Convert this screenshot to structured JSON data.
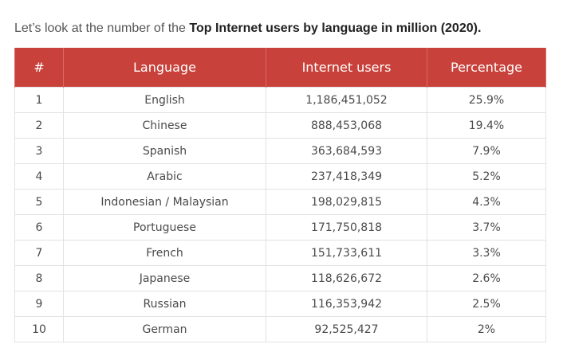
{
  "intro": {
    "prefix": "Let’s look at the number of the ",
    "bold": "Top Internet users by language in million (2020)."
  },
  "table": {
    "headers": [
      "#",
      "Language",
      "Internet users",
      "Percentage"
    ],
    "rows": [
      [
        "1",
        "English",
        "1,186,451,052",
        "25.9%"
      ],
      [
        "2",
        "Chinese",
        "888,453,068",
        "19.4%"
      ],
      [
        "3",
        "Spanish",
        "363,684,593",
        "7.9%"
      ],
      [
        "4",
        "Arabic",
        "237,418,349",
        "5.2%"
      ],
      [
        "5",
        "Indonesian / Malaysian",
        "198,029,815",
        "4.3%"
      ],
      [
        "6",
        "Portuguese",
        "171,750,818",
        "3.7%"
      ],
      [
        "7",
        "French",
        "151,733,611",
        "3.3%"
      ],
      [
        "8",
        "Japanese",
        "118,626,672",
        "2.6%"
      ],
      [
        "9",
        "Russian",
        "116,353,942",
        "2.5%"
      ],
      [
        "10",
        "German",
        "92,525,427",
        "2%"
      ]
    ]
  },
  "colors": {
    "header_background": "#c8413a",
    "header_text": "#ffffff",
    "cell_border": "#e2e2e2"
  }
}
